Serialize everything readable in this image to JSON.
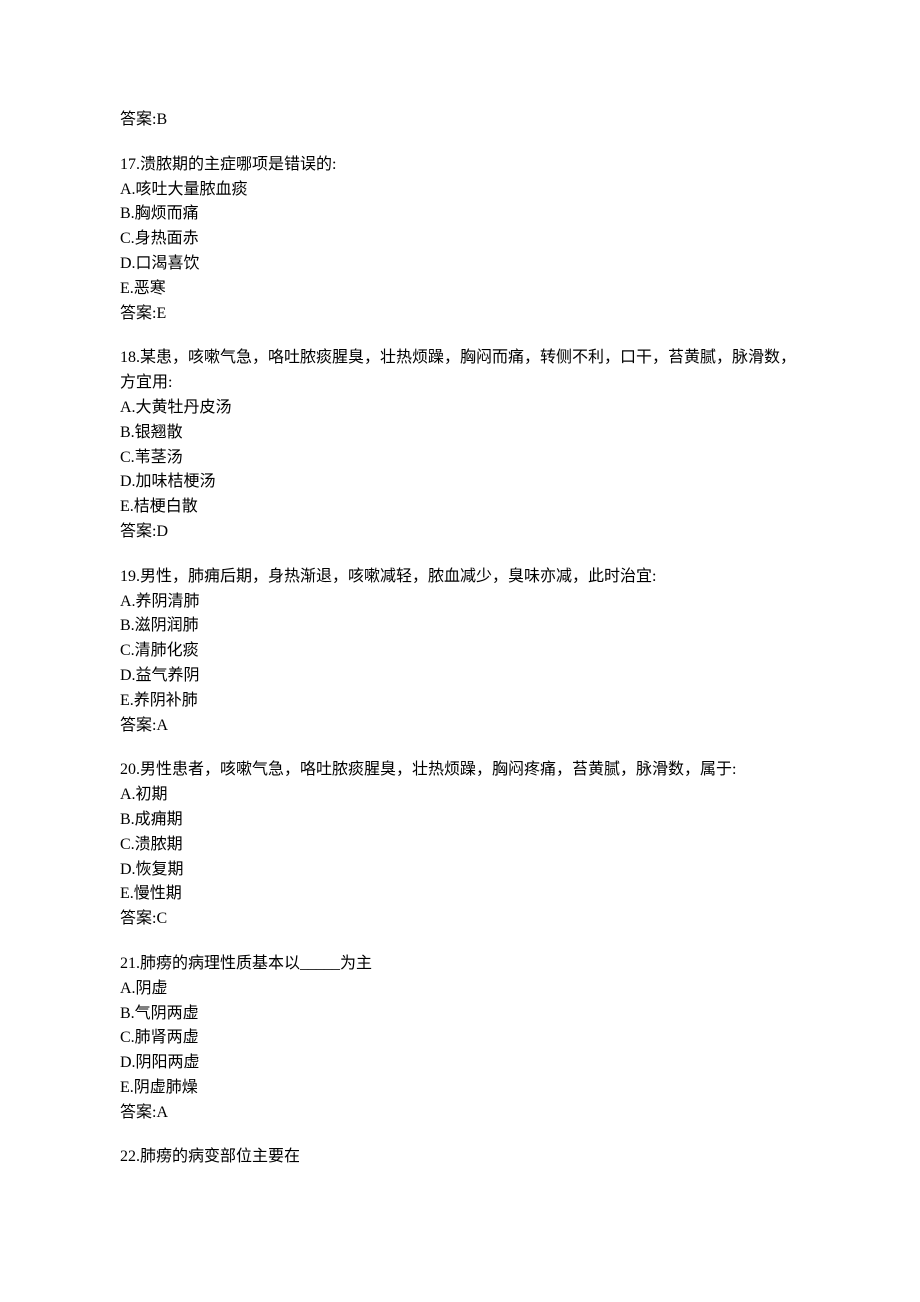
{
  "orphan_answer": {
    "label": "答案:",
    "value": "B"
  },
  "questions": [
    {
      "number": "17",
      "stem": ".溃脓期的主症哪项是错误的:",
      "options": [
        "A.咳吐大量脓血痰",
        "B.胸烦而痛",
        "C.身热面赤",
        "D.口渴喜饮",
        "E.恶寒"
      ],
      "answer_label": "答案:",
      "answer_value": "E"
    },
    {
      "number": "18",
      "stem": ".某患，咳嗽气急，咯吐脓痰腥臭，壮热烦躁，胸闷而痛，转侧不利，口干，苔黄腻，脉滑数，方宜用:",
      "options": [
        "A.大黄牡丹皮汤",
        "B.银翘散",
        "C.苇茎汤",
        "D.加味桔梗汤",
        "E.桔梗白散"
      ],
      "answer_label": "答案:",
      "answer_value": "D"
    },
    {
      "number": "19",
      "stem": ".男性，肺痈后期，身热渐退，咳嗽减轻，脓血减少，臭味亦减，此时治宜:",
      "options": [
        "A.养阴清肺",
        "B.滋阴润肺",
        "C.清肺化痰",
        "D.益气养阴",
        "E.养阴补肺"
      ],
      "answer_label": "答案:",
      "answer_value": "A"
    },
    {
      "number": "20",
      "stem": ".男性患者，咳嗽气急，咯吐脓痰腥臭，壮热烦躁，胸闷疼痛，苔黄腻，脉滑数，属于:",
      "options": [
        "A.初期",
        "B.成痈期",
        "C.溃脓期",
        "D.恢复期",
        "E.慢性期"
      ],
      "answer_label": "答案:",
      "answer_value": "C"
    },
    {
      "number": "21",
      "stem": ".肺痨的病理性质基本以_____为主",
      "options": [
        "A.阴虚",
        "B.气阴两虚",
        "C.肺肾两虚",
        "D.阴阳两虚",
        "E.阴虚肺燥"
      ],
      "answer_label": "答案:",
      "answer_value": "A"
    },
    {
      "number": "22",
      "stem": ".肺痨的病变部位主要在",
      "options": [],
      "answer_label": "",
      "answer_value": ""
    }
  ]
}
